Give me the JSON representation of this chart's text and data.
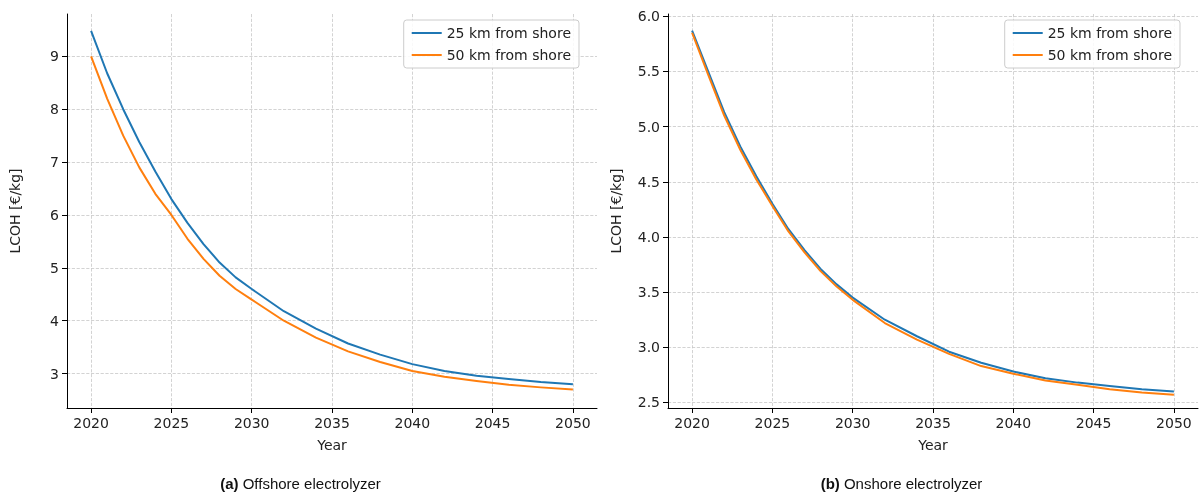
{
  "chart_data": [
    {
      "type": "line",
      "xlabel": "Year",
      "ylabel": "LCOH [€/kg]",
      "annotations": [
        "(a) Offshore electrolyzer"
      ],
      "x": [
        2020,
        2021,
        2022,
        2023,
        2024,
        2025,
        2026,
        2027,
        2028,
        2029,
        2030,
        2032,
        2034,
        2036,
        2038,
        2040,
        2042,
        2044,
        2046,
        2048,
        2050
      ],
      "series": [
        {
          "name": "25 km from shore",
          "color": "#1f77b4",
          "values": [
            9.48,
            8.68,
            8.0,
            7.38,
            6.82,
            6.3,
            5.85,
            5.45,
            5.1,
            4.82,
            4.6,
            4.18,
            3.85,
            3.57,
            3.36,
            3.18,
            3.05,
            2.96,
            2.9,
            2.84,
            2.8
          ]
        },
        {
          "name": "50 km from shore",
          "color": "#ff7f0e",
          "values": [
            9.0,
            8.2,
            7.5,
            6.9,
            6.4,
            6.0,
            5.55,
            5.17,
            4.85,
            4.6,
            4.4,
            4.0,
            3.68,
            3.42,
            3.22,
            3.05,
            2.94,
            2.86,
            2.79,
            2.74,
            2.7
          ]
        }
      ],
      "xlim": [
        2018.5,
        2051.5
      ],
      "xticks": [
        2020,
        2025,
        2030,
        2035,
        2040,
        2045,
        2050
      ],
      "ylim": [
        2.35,
        9.8
      ],
      "yticks": [
        3,
        4,
        5,
        6,
        7,
        8,
        9
      ],
      "grid": true,
      "legend": "top right",
      "line_style": "solid",
      "marker": "none"
    },
    {
      "type": "line",
      "xlabel": "Year",
      "ylabel": "LCOH [€/kg]",
      "annotations": [
        "(b) Onshore electrolyzer"
      ],
      "x": [
        2020,
        2021,
        2022,
        2023,
        2024,
        2025,
        2026,
        2027,
        2028,
        2029,
        2030,
        2032,
        2034,
        2036,
        2038,
        2040,
        2042,
        2044,
        2046,
        2048,
        2050
      ],
      "series": [
        {
          "name": "25 km from shore",
          "color": "#1f77b4",
          "values": [
            5.87,
            5.5,
            5.13,
            4.82,
            4.55,
            4.3,
            4.07,
            3.88,
            3.71,
            3.57,
            3.45,
            3.25,
            3.1,
            2.96,
            2.86,
            2.78,
            2.72,
            2.68,
            2.65,
            2.62,
            2.6
          ]
        },
        {
          "name": "50 km from shore",
          "color": "#ff7f0e",
          "values": [
            5.85,
            5.47,
            5.1,
            4.79,
            4.52,
            4.28,
            4.05,
            3.86,
            3.69,
            3.55,
            3.43,
            3.22,
            3.07,
            2.94,
            2.83,
            2.76,
            2.7,
            2.66,
            2.62,
            2.59,
            2.57
          ]
        }
      ],
      "xlim": [
        2018.5,
        2051.5
      ],
      "xticks": [
        2020,
        2025,
        2030,
        2035,
        2040,
        2045,
        2050
      ],
      "ylim": [
        2.45,
        6.02
      ],
      "yticks": [
        2.5,
        {
          "value": 3,
          "label": "3.0"
        },
        3.5,
        {
          "value": 4,
          "label": "4.0"
        },
        4.5,
        {
          "value": 5,
          "label": "5.0"
        },
        5.5,
        {
          "value": 6,
          "label": "6.0"
        }
      ],
      "grid": true,
      "legend": "top right",
      "line_style": "solid",
      "marker": "none"
    }
  ]
}
